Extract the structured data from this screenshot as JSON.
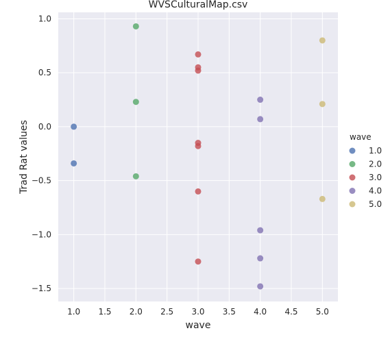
{
  "chart_data": {
    "type": "scatter",
    "title": "WVSCulturalMap.csv",
    "xlabel": "wave",
    "ylabel": "Trad Rat values",
    "xlim": [
      0.75,
      5.25
    ],
    "ylim": [
      -1.62,
      1.06
    ],
    "xticks": [
      1.0,
      1.5,
      2.0,
      2.5,
      3.0,
      3.5,
      4.0,
      4.5,
      5.0
    ],
    "xtick_labels": [
      "1.0",
      "1.5",
      "2.0",
      "2.5",
      "3.0",
      "3.5",
      "4.0",
      "4.5",
      "5.0"
    ],
    "yticks": [
      1.0,
      0.5,
      0.0,
      -0.5,
      -1.0,
      -1.5
    ],
    "ytick_labels": [
      "1.0",
      "0.5",
      "0.0",
      "−0.5",
      "−1.0",
      "−1.5"
    ],
    "grid": true,
    "legend": {
      "title": "wave",
      "placement": "right"
    },
    "series": [
      {
        "name": "1.0",
        "color": "#4c72b0",
        "points": [
          [
            1.0,
            0.0
          ],
          [
            1.0,
            -0.34
          ]
        ]
      },
      {
        "name": "2.0",
        "color": "#55a868",
        "points": [
          [
            2.0,
            0.93
          ],
          [
            2.0,
            0.23
          ],
          [
            2.0,
            -0.46
          ]
        ]
      },
      {
        "name": "3.0",
        "color": "#c44e52",
        "points": [
          [
            3.0,
            0.67
          ],
          [
            3.0,
            0.55
          ],
          [
            3.0,
            0.52
          ],
          [
            3.0,
            -0.15
          ],
          [
            3.0,
            -0.18
          ],
          [
            3.0,
            -0.6
          ],
          [
            3.0,
            -1.25
          ]
        ]
      },
      {
        "name": "4.0",
        "color": "#8172b2",
        "points": [
          [
            4.0,
            0.25
          ],
          [
            4.0,
            0.07
          ],
          [
            4.0,
            -0.96
          ],
          [
            4.0,
            -1.22
          ],
          [
            4.0,
            -1.48
          ]
        ]
      },
      {
        "name": "5.0",
        "color": "#ccb974",
        "points": [
          [
            5.0,
            0.8
          ],
          [
            5.0,
            0.21
          ],
          [
            5.0,
            -0.67
          ]
        ]
      }
    ]
  }
}
